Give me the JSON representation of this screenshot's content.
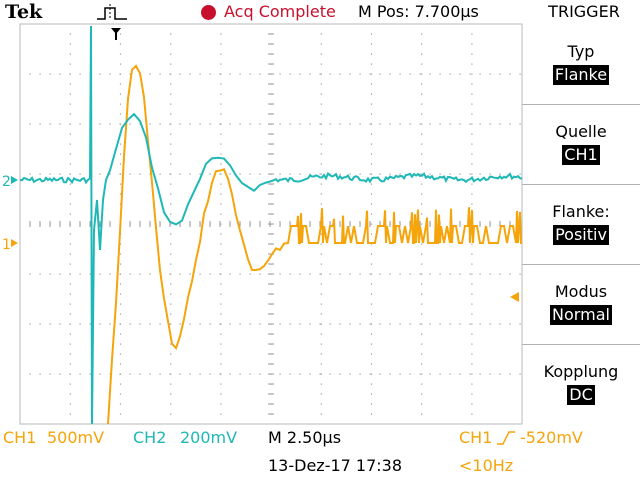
{
  "header": {
    "brand": "Tek",
    "trigger_icon": "pulse-edge-icon",
    "status": "Acq Complete",
    "status_color": "#c8102e",
    "mpos": "M Pos: 7.700µs"
  },
  "menu": {
    "title": "TRIGGER",
    "items": [
      {
        "label": "Typ",
        "value": "Flanke"
      },
      {
        "label": "Quelle",
        "value": "CH1"
      },
      {
        "label": "Flanke:",
        "value": "Positiv"
      },
      {
        "label": "Modus",
        "value": "Normal"
      },
      {
        "label": "Kopplung",
        "value": "DC"
      }
    ]
  },
  "channels": {
    "ch1": {
      "label": "CH1",
      "scale": "500mV",
      "marker": "1",
      "color": "#f5a40a"
    },
    "ch2": {
      "label": "CH2",
      "scale": "200mV",
      "marker": "2",
      "color": "#1eb8b6"
    }
  },
  "footer": {
    "timebase": "M 2.50µs",
    "trigger_source": "CH1",
    "trigger_slope_icon": "rising-edge-icon",
    "trigger_level": "-520mV",
    "datetime": "13-Dez-17 17:38",
    "frequency": "<10Hz"
  }
}
